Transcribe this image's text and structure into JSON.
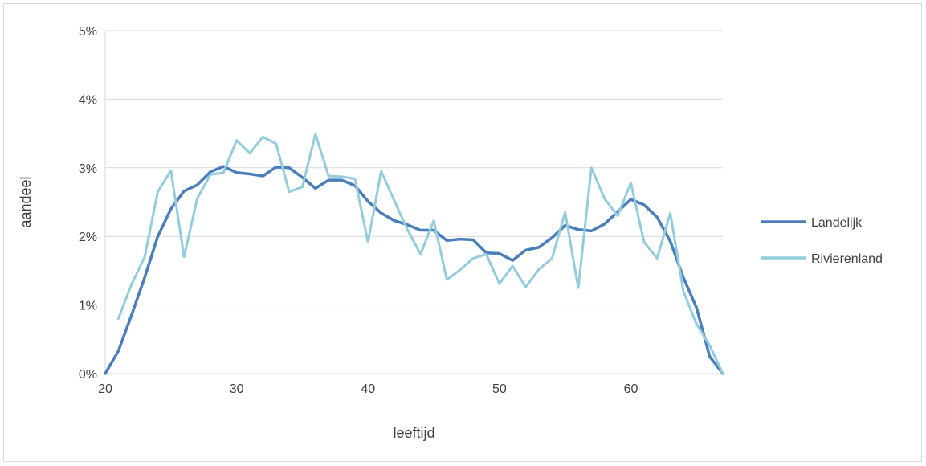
{
  "chart_data": {
    "type": "line",
    "xlabel": "leeftijd",
    "ylabel": "aandeel",
    "xlim": [
      20,
      67
    ],
    "ylim": [
      0,
      0.05
    ],
    "x_ticks": [
      "20",
      "30",
      "40",
      "50",
      "60"
    ],
    "y_ticks": [
      "0%",
      "1%",
      "2%",
      "3%",
      "4%",
      "5%"
    ],
    "grid": "horizontal",
    "legend_position": "right",
    "x": [
      20,
      21,
      22,
      23,
      24,
      25,
      26,
      27,
      28,
      29,
      30,
      31,
      32,
      33,
      34,
      35,
      36,
      37,
      38,
      39,
      40,
      41,
      42,
      43,
      44,
      45,
      46,
      47,
      48,
      49,
      50,
      51,
      52,
      53,
      54,
      55,
      56,
      57,
      58,
      59,
      60,
      61,
      62,
      63,
      64,
      65,
      66,
      67
    ],
    "series": [
      {
        "name": "Landelijk",
        "color": "#4a7ebb",
        "values": [
          0.0,
          0.0033,
          0.0085,
          0.014,
          0.02,
          0.024,
          0.0266,
          0.0275,
          0.0294,
          0.0302,
          0.0293,
          0.0291,
          0.0288,
          0.0301,
          0.03,
          0.0286,
          0.027,
          0.0282,
          0.0282,
          0.0274,
          0.0251,
          0.0234,
          0.0223,
          0.0217,
          0.0209,
          0.0209,
          0.0194,
          0.0196,
          0.0195,
          0.0176,
          0.0175,
          0.0165,
          0.018,
          0.0184,
          0.0198,
          0.0216,
          0.021,
          0.0208,
          0.0218,
          0.0236,
          0.0254,
          0.0246,
          0.0228,
          0.0193,
          0.014,
          0.0096,
          0.0025,
          0.0
        ]
      },
      {
        "name": "Rivierenland",
        "color": "#93cddd",
        "values": [
          null,
          0.008,
          0.013,
          0.017,
          0.0265,
          0.0296,
          0.017,
          0.0255,
          0.029,
          0.0293,
          0.034,
          0.0321,
          0.0345,
          0.0335,
          0.0265,
          0.0272,
          0.0349,
          0.0288,
          0.0287,
          0.0284,
          0.0192,
          0.0295,
          0.0252,
          0.021,
          0.0174,
          0.0223,
          0.0137,
          0.0151,
          0.0168,
          0.0174,
          0.0131,
          0.0157,
          0.0126,
          0.0152,
          0.0168,
          0.0235,
          0.0125,
          0.03,
          0.0255,
          0.023,
          0.0278,
          0.0192,
          0.0168,
          0.0234,
          0.012,
          0.0072,
          0.0041,
          0.0
        ]
      }
    ]
  }
}
